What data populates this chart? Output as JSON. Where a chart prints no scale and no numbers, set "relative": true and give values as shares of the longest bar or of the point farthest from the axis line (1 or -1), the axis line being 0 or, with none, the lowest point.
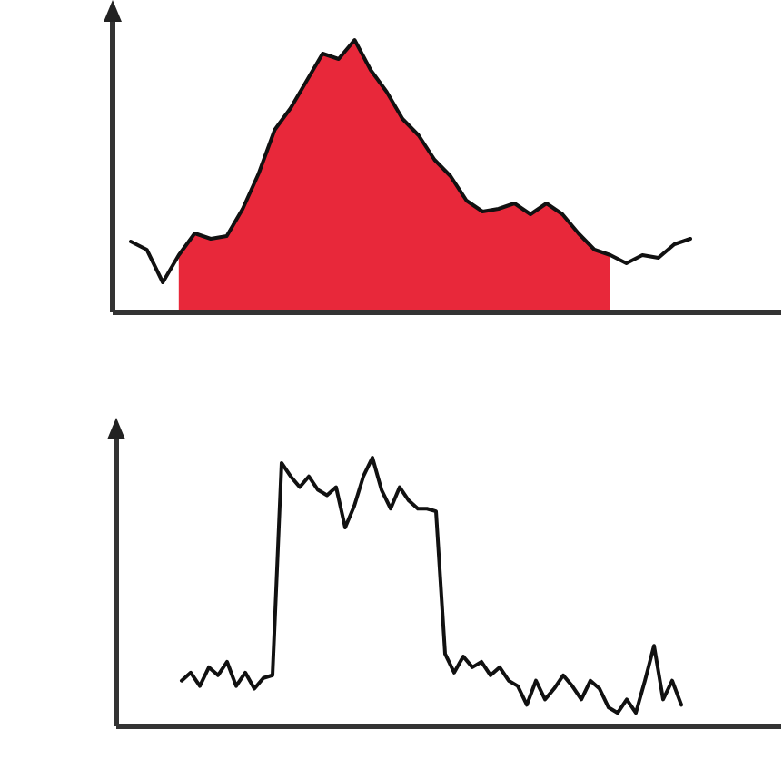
{
  "chart_data": [
    {
      "type": "line",
      "relative": true,
      "categories": [
        null,
        null,
        null,
        null,
        null,
        null,
        null,
        null,
        null,
        null,
        null,
        null,
        null,
        null,
        null,
        null,
        null,
        null,
        null,
        null,
        null,
        null,
        null,
        null,
        null,
        null,
        null,
        null,
        null,
        null,
        null,
        null,
        null,
        null,
        null,
        null
      ],
      "series": [
        {
          "type": "area",
          "color": "#e8283a",
          "values": [
            null,
            null,
            null,
            0.21,
            0.29,
            0.27,
            0.28,
            0.38,
            0.51,
            0.67,
            0.75,
            0.85,
            0.95,
            0.93,
            1,
            0.89,
            0.81,
            0.71,
            0.65,
            0.56,
            0.5,
            0.41,
            0.37,
            0.38,
            0.4,
            0.36,
            0.4,
            0.36,
            0.29,
            0.23,
            0.21,
            null,
            null,
            null,
            null,
            null
          ]
        },
        {
          "color": "#111111",
          "values": [
            0.26,
            0.23,
            0.11,
            0.21,
            0.29,
            0.27,
            0.28,
            0.38,
            0.51,
            0.67,
            0.75,
            0.85,
            0.95,
            0.93,
            1,
            0.89,
            0.81,
            0.71,
            0.65,
            0.56,
            0.5,
            0.41,
            0.37,
            0.38,
            0.4,
            0.36,
            0.4,
            0.36,
            0.29,
            0.23,
            0.21,
            0.18,
            0.21,
            0.2,
            0.25,
            0.27
          ]
        }
      ]
    },
    {
      "type": "line",
      "relative": true,
      "categories": [
        null,
        null,
        null,
        null,
        null,
        null,
        null,
        null,
        null,
        null,
        null,
        null,
        null,
        null,
        null,
        null,
        null,
        null,
        null,
        null,
        null,
        null,
        null,
        null,
        null,
        null,
        null,
        null,
        null,
        null,
        null,
        null,
        null,
        null,
        null,
        null,
        null,
        null,
        null,
        null,
        null,
        null,
        null,
        null,
        null,
        null,
        null,
        null,
        null,
        null,
        null,
        null,
        null,
        null,
        null,
        null
      ],
      "series": [
        {
          "color": "#111111",
          "values": [
            0.17,
            0.2,
            0.15,
            0.22,
            0.19,
            0.24,
            0.15,
            0.2,
            0.14,
            0.18,
            0.19,
            0.98,
            0.93,
            0.89,
            0.93,
            0.88,
            0.86,
            0.89,
            0.74,
            0.82,
            0.93,
            1,
            0.88,
            0.81,
            0.89,
            0.84,
            0.81,
            0.81,
            0.8,
            0.27,
            0.2,
            0.26,
            0.22,
            0.24,
            0.19,
            0.22,
            0.17,
            0.15,
            0.08,
            0.17,
            0.1,
            0.14,
            0.19,
            0.15,
            0.1,
            0.17,
            0.14,
            0.07,
            0.05,
            0.1,
            0.05,
            0.17,
            0.3,
            0.1,
            0.17,
            0.08
          ]
        }
      ]
    }
  ]
}
